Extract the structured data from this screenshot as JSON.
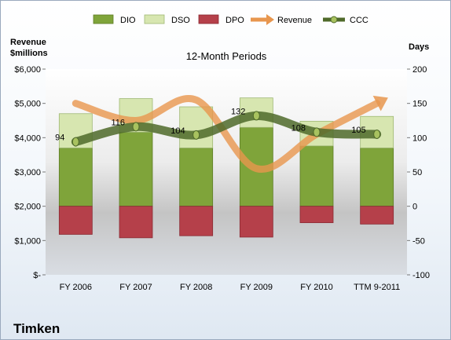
{
  "company": "Timken",
  "chart_data": {
    "type": "bar",
    "title": "12-Month Periods",
    "left_axis": {
      "title_line1": "Revenue",
      "title_line2": "$millions",
      "ticks": [
        "$-",
        "$1,000",
        "$2,000",
        "$3,000",
        "$4,000",
        "$5,000",
        "$6,000"
      ],
      "ylim": [
        0,
        6000
      ]
    },
    "right_axis": {
      "title": "Days",
      "ticks": [
        "-100",
        "-50",
        "0",
        "50",
        "100",
        "150",
        "200"
      ],
      "ylim": [
        -100,
        200
      ]
    },
    "categories": [
      "FY 2006",
      "FY 2007",
      "FY 2008",
      "FY 2009",
      "FY 2010",
      "TTM 9-2011"
    ],
    "series": [
      {
        "name": "DIO",
        "axis": "days",
        "color": "#7fa43a",
        "values": [
          85,
          108,
          85,
          115,
          88,
          85
        ]
      },
      {
        "name": "DSO",
        "axis": "days",
        "color": "#d7e6b0",
        "values": [
          50,
          49,
          60,
          43,
          36,
          46
        ]
      },
      {
        "name": "DPO",
        "axis": "days",
        "color": "#b5404a",
        "values": [
          -41,
          -46,
          -43,
          -45,
          -24,
          -26
        ]
      },
      {
        "name": "Revenue",
        "axis": "revenue",
        "color": "#e8964e",
        "values": [
          5000,
          4500,
          5100,
          3100,
          4100,
          5000
        ]
      },
      {
        "name": "CCC",
        "axis": "days",
        "color": "#4f6a2a",
        "values": [
          94,
          116,
          104,
          132,
          108,
          105
        ],
        "labels": [
          "94",
          "116",
          "104",
          "132",
          "108",
          "105"
        ]
      }
    ],
    "legend_position": "top",
    "grid": false
  }
}
